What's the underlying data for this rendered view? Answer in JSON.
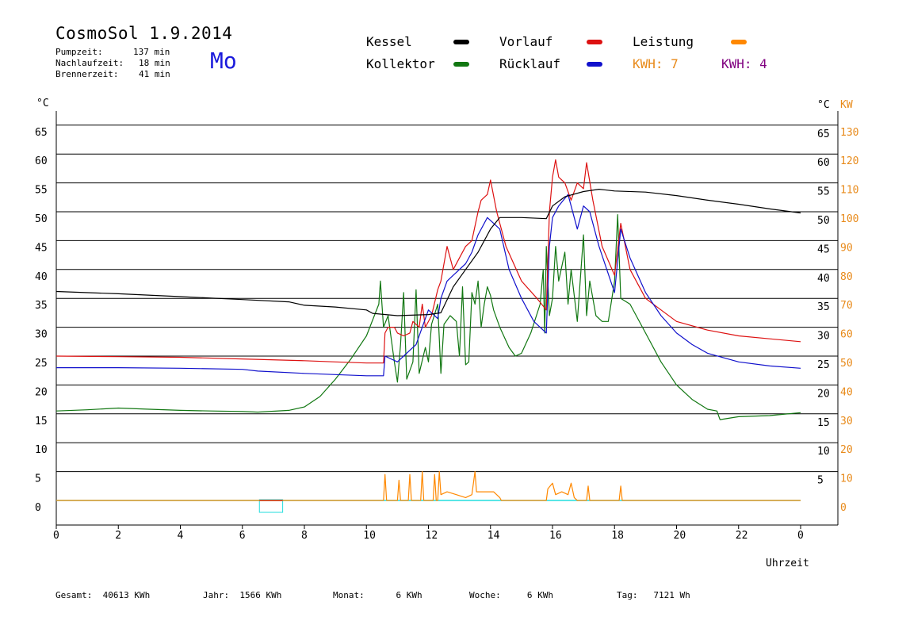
{
  "header": {
    "title": "CosmoSol 1.9.2014",
    "day": "Mo",
    "info": [
      {
        "label": "Pumpzeit:",
        "value": "137 min"
      },
      {
        "label": "Nachlaufzeit:",
        "value": "18 min"
      },
      {
        "label": "Brennerzeit:",
        "value": "41 min"
      }
    ]
  },
  "legend": {
    "kessel": "Kessel",
    "kollektor": "Kollektor",
    "vorlauf": "Vorlauf",
    "ruecklauf": "Rücklauf",
    "leistung": "Leistung",
    "kwh_orange": "KWH: 7",
    "kwh_purple": "KWH: 4"
  },
  "colors": {
    "kessel": "#000000",
    "kollektor": "#117711",
    "vorlauf": "#dd1111",
    "ruecklauf": "#1111cc",
    "leistung": "#ff8800",
    "kwh_orange": "#e88a1a",
    "kwh_purple": "#800080",
    "grid": "#000000",
    "cyan": "#22dddd"
  },
  "axes": {
    "left_unit": "°C",
    "right_unit_c": "°C",
    "right_unit_kw": "KW",
    "xlabel": "Uhrzeit"
  },
  "footer": {
    "gesamt": "Gesamt:  40613 KWh",
    "jahr": "Jahr:  1566 KWh",
    "monat": "Monat:      6 KWh",
    "woche": "Woche:     6 KWh",
    "tag": "Tag:   7121 Wh"
  },
  "chart_data": {
    "type": "line",
    "xlabel": "Uhrzeit",
    "ylabel": "°C",
    "xlim": [
      0,
      24
    ],
    "ylim": [
      0,
      65
    ],
    "y2lim": [
      0,
      130
    ],
    "grid": true,
    "x_ticks": [
      "0",
      "2",
      "4",
      "6",
      "8",
      "10",
      "12",
      "14",
      "16",
      "18",
      "20",
      "22",
      "0"
    ],
    "y_ticks_left": [
      "0",
      "5",
      "10",
      "15",
      "20",
      "25",
      "30",
      "35",
      "40",
      "45",
      "50",
      "55",
      "60",
      "65"
    ],
    "y_ticks_right_c": [
      "5",
      "10",
      "15",
      "20",
      "25",
      "30",
      "35",
      "40",
      "45",
      "50",
      "55",
      "60",
      "65"
    ],
    "y_ticks_right_kw": [
      "0",
      "10",
      "20",
      "30",
      "40",
      "50",
      "60",
      "70",
      "80",
      "90",
      "100",
      "110",
      "120",
      "130"
    ],
    "series": [
      {
        "name": "Kessel",
        "color": "#000000",
        "points": [
          [
            0,
            36.2
          ],
          [
            2,
            35.8
          ],
          [
            4,
            35.3
          ],
          [
            6,
            34.8
          ],
          [
            7.5,
            34.4
          ],
          [
            8,
            33.8
          ],
          [
            9,
            33.5
          ],
          [
            10,
            33
          ],
          [
            10.2,
            32.4
          ],
          [
            11,
            32
          ],
          [
            12,
            32.2
          ],
          [
            12.4,
            32.5
          ],
          [
            12.8,
            37
          ],
          [
            13.2,
            40
          ],
          [
            13.6,
            43
          ],
          [
            14,
            47
          ],
          [
            14.3,
            49
          ],
          [
            15,
            49
          ],
          [
            15.8,
            48.8
          ],
          [
            16,
            51
          ],
          [
            16.4,
            52.6
          ],
          [
            17,
            53.5
          ],
          [
            17.5,
            53.9
          ],
          [
            18,
            53.6
          ],
          [
            19,
            53.4
          ],
          [
            20,
            52.8
          ],
          [
            21,
            52
          ],
          [
            22,
            51.3
          ],
          [
            23,
            50.5
          ],
          [
            24,
            49.8
          ]
        ]
      },
      {
        "name": "Kollektor",
        "color": "#117711",
        "points": [
          [
            0,
            15.5
          ],
          [
            1,
            15.7
          ],
          [
            2,
            16
          ],
          [
            3,
            15.8
          ],
          [
            4,
            15.6
          ],
          [
            5,
            15.5
          ],
          [
            6,
            15.4
          ],
          [
            6.5,
            15.3
          ],
          [
            7.5,
            15.6
          ],
          [
            8,
            16.2
          ],
          [
            8.5,
            18
          ],
          [
            9,
            21
          ],
          [
            9.5,
            24.5
          ],
          [
            10,
            28.5
          ],
          [
            10.4,
            34
          ],
          [
            10.45,
            38
          ],
          [
            10.55,
            30
          ],
          [
            10.7,
            32
          ],
          [
            10.9,
            24
          ],
          [
            11,
            20.5
          ],
          [
            11.1,
            27
          ],
          [
            11.2,
            36
          ],
          [
            11.3,
            21
          ],
          [
            11.5,
            24
          ],
          [
            11.6,
            36.5
          ],
          [
            11.7,
            22
          ],
          [
            11.9,
            26.5
          ],
          [
            12,
            24
          ],
          [
            12.1,
            30.5
          ],
          [
            12.3,
            34
          ],
          [
            12.4,
            22
          ],
          [
            12.5,
            30.5
          ],
          [
            12.7,
            32
          ],
          [
            12.9,
            31
          ],
          [
            13,
            25
          ],
          [
            13.1,
            37
          ],
          [
            13.2,
            23.5
          ],
          [
            13.3,
            24
          ],
          [
            13.4,
            36
          ],
          [
            13.5,
            34
          ],
          [
            13.6,
            38
          ],
          [
            13.7,
            30
          ],
          [
            13.8,
            34
          ],
          [
            13.9,
            37
          ],
          [
            14,
            35.5
          ],
          [
            14.1,
            33
          ],
          [
            14.3,
            30
          ],
          [
            14.6,
            26.5
          ],
          [
            14.8,
            25
          ],
          [
            15,
            25.5
          ],
          [
            15.3,
            29
          ],
          [
            15.6,
            34
          ],
          [
            15.7,
            40
          ],
          [
            15.75,
            29
          ],
          [
            15.8,
            44
          ],
          [
            15.9,
            32
          ],
          [
            16,
            35
          ],
          [
            16.1,
            44
          ],
          [
            16.2,
            38
          ],
          [
            16.4,
            43
          ],
          [
            16.5,
            34
          ],
          [
            16.6,
            40
          ],
          [
            16.8,
            31
          ],
          [
            17,
            46
          ],
          [
            17.1,
            32
          ],
          [
            17.2,
            38
          ],
          [
            17.4,
            32
          ],
          [
            17.6,
            31
          ],
          [
            17.8,
            31
          ],
          [
            18,
            38
          ],
          [
            18.1,
            49.5
          ],
          [
            18.2,
            35
          ],
          [
            18.5,
            34
          ],
          [
            19,
            29
          ],
          [
            19.5,
            24
          ],
          [
            20,
            20
          ],
          [
            20.5,
            17.5
          ],
          [
            21,
            15.8
          ],
          [
            21.3,
            15.5
          ],
          [
            21.4,
            14
          ],
          [
            22,
            14.5
          ],
          [
            23,
            14.7
          ],
          [
            24,
            15.2
          ]
        ]
      },
      {
        "name": "Vorlauf",
        "color": "#dd1111",
        "points": [
          [
            0,
            25
          ],
          [
            2,
            24.9
          ],
          [
            4,
            24.8
          ],
          [
            6,
            24.5
          ],
          [
            8,
            24.2
          ],
          [
            9,
            24
          ],
          [
            10,
            23.8
          ],
          [
            10.55,
            23.8
          ],
          [
            10.6,
            29
          ],
          [
            10.7,
            30
          ],
          [
            10.9,
            30
          ],
          [
            11,
            29
          ],
          [
            11.2,
            28.5
          ],
          [
            11.4,
            29
          ],
          [
            11.5,
            31
          ],
          [
            11.7,
            30
          ],
          [
            11.8,
            34
          ],
          [
            11.9,
            30
          ],
          [
            12.1,
            32
          ],
          [
            12.3,
            36.5
          ],
          [
            12.4,
            38
          ],
          [
            12.6,
            44
          ],
          [
            12.8,
            40
          ],
          [
            13,
            42
          ],
          [
            13.2,
            44
          ],
          [
            13.4,
            45
          ],
          [
            13.6,
            50
          ],
          [
            13.7,
            52
          ],
          [
            13.9,
            53
          ],
          [
            14,
            55.5
          ],
          [
            14.2,
            50
          ],
          [
            14.5,
            44
          ],
          [
            15,
            38
          ],
          [
            15.5,
            35
          ],
          [
            15.8,
            33
          ],
          [
            15.9,
            50
          ],
          [
            16,
            56
          ],
          [
            16.1,
            59
          ],
          [
            16.2,
            56
          ],
          [
            16.4,
            55
          ],
          [
            16.6,
            52
          ],
          [
            16.8,
            55
          ],
          [
            17,
            54
          ],
          [
            17.1,
            58.5
          ],
          [
            17.3,
            52
          ],
          [
            17.6,
            44
          ],
          [
            18,
            39
          ],
          [
            18.2,
            48
          ],
          [
            18.5,
            40
          ],
          [
            19,
            35
          ],
          [
            19.5,
            33
          ],
          [
            20,
            31
          ],
          [
            21,
            29.5
          ],
          [
            22,
            28.5
          ],
          [
            23,
            28
          ],
          [
            24,
            27.5
          ]
        ]
      },
      {
        "name": "Rücklauf",
        "color": "#1111cc",
        "points": [
          [
            0,
            23
          ],
          [
            2,
            23
          ],
          [
            4,
            22.9
          ],
          [
            6,
            22.7
          ],
          [
            6.5,
            22.4
          ],
          [
            8,
            22
          ],
          [
            9,
            21.8
          ],
          [
            10,
            21.6
          ],
          [
            10.55,
            21.6
          ],
          [
            10.6,
            25
          ],
          [
            11,
            24
          ],
          [
            11.2,
            25
          ],
          [
            11.4,
            26
          ],
          [
            11.6,
            27
          ],
          [
            11.8,
            30
          ],
          [
            12,
            33
          ],
          [
            12.3,
            31.5
          ],
          [
            12.4,
            35
          ],
          [
            12.6,
            38
          ],
          [
            12.8,
            39
          ],
          [
            13,
            40
          ],
          [
            13.2,
            41
          ],
          [
            13.4,
            43
          ],
          [
            13.6,
            46
          ],
          [
            13.9,
            49
          ],
          [
            14.1,
            48
          ],
          [
            14.3,
            47
          ],
          [
            14.6,
            40
          ],
          [
            15,
            35
          ],
          [
            15.4,
            31
          ],
          [
            15.8,
            29
          ],
          [
            15.9,
            44
          ],
          [
            16,
            49
          ],
          [
            16.2,
            51
          ],
          [
            16.5,
            53
          ],
          [
            16.8,
            47
          ],
          [
            17,
            51
          ],
          [
            17.2,
            50
          ],
          [
            17.5,
            44
          ],
          [
            18,
            36
          ],
          [
            18.2,
            47
          ],
          [
            18.5,
            42
          ],
          [
            19,
            36
          ],
          [
            19.5,
            32
          ],
          [
            20,
            29
          ],
          [
            20.5,
            27
          ],
          [
            21,
            25.5
          ],
          [
            22,
            24
          ],
          [
            23,
            23.3
          ],
          [
            24,
            22.9
          ]
        ]
      },
      {
        "name": "Leistung",
        "color": "#ff8800",
        "points": [
          [
            0,
            0
          ],
          [
            10.55,
            0
          ],
          [
            10.6,
            9
          ],
          [
            10.65,
            0
          ],
          [
            11,
            0
          ],
          [
            11.05,
            7
          ],
          [
            11.1,
            0
          ],
          [
            11.35,
            0
          ],
          [
            11.4,
            9
          ],
          [
            11.45,
            0
          ],
          [
            11.75,
            0
          ],
          [
            11.8,
            10
          ],
          [
            11.85,
            0
          ],
          [
            12.15,
            0
          ],
          [
            12.2,
            9
          ],
          [
            12.25,
            0
          ],
          [
            12.3,
            0
          ],
          [
            12.35,
            10
          ],
          [
            12.4,
            2
          ],
          [
            12.6,
            3
          ],
          [
            12.9,
            2
          ],
          [
            13.2,
            1
          ],
          [
            13.4,
            2
          ],
          [
            13.5,
            10
          ],
          [
            13.55,
            3
          ],
          [
            13.8,
            3
          ],
          [
            14.1,
            3
          ],
          [
            14.3,
            1
          ],
          [
            14.35,
            0
          ],
          [
            15.8,
            0
          ],
          [
            15.85,
            4
          ],
          [
            16,
            6
          ],
          [
            16.1,
            2
          ],
          [
            16.3,
            3
          ],
          [
            16.5,
            2
          ],
          [
            16.6,
            6
          ],
          [
            16.7,
            1
          ],
          [
            16.8,
            0
          ],
          [
            17.1,
            0
          ],
          [
            17.15,
            5
          ],
          [
            17.2,
            0
          ],
          [
            18.15,
            0
          ],
          [
            18.2,
            5
          ],
          [
            18.25,
            0
          ],
          [
            24,
            0
          ]
        ]
      }
    ]
  }
}
